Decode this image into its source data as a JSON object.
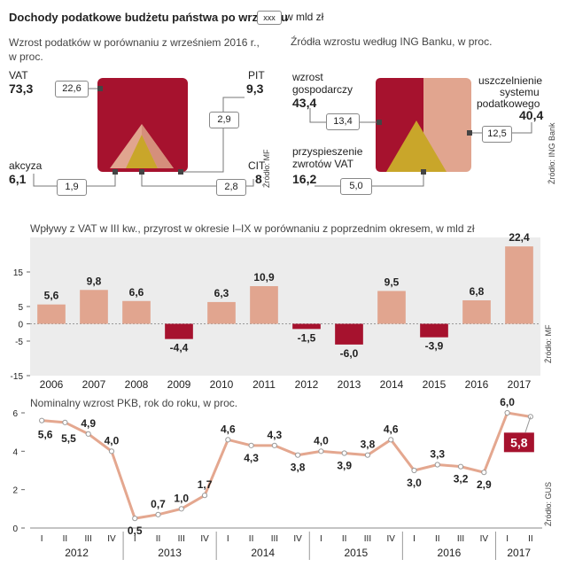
{
  "header": {
    "title": "Dochody podatkowe  budżetu państwa po wrześniu",
    "legend_box": "xxx",
    "legend_unit": "w mld zł"
  },
  "colors": {
    "dark_red": "#a6122e",
    "salmon": "#e1a58f",
    "olive": "#c9a62a",
    "band": "#ececec",
    "line": "#e4a78f"
  },
  "chart_data": [
    {
      "type": "pie",
      "title": "Wzrost podatków w porównaniu z wrześniem 2016 r., w proc.",
      "source": "Źródło: MF",
      "slices": [
        {
          "name": "VAT",
          "value": 73.3,
          "amount": "22,6"
        },
        {
          "name": "PIT",
          "value": 9.3,
          "amount": "2,9"
        },
        {
          "name": "CIT",
          "value": 8,
          "amount": "2,8"
        },
        {
          "name": "akcyza",
          "value": 6.1,
          "amount": "1,9"
        }
      ],
      "value_labels": [
        "73,3",
        "9,3",
        "8",
        "6,1"
      ]
    },
    {
      "type": "pie",
      "title": "Źródła wzrostu według ING Banku, w proc.",
      "source": "Źródło: ING Bank",
      "slices": [
        {
          "name": "wzrost gospodarczy",
          "value": 43.4,
          "amount": "13,4"
        },
        {
          "name": "uszczelnienie systemu podatkowego",
          "value": 40.4,
          "amount": "12,5"
        },
        {
          "name": "przyspieszenie zwrotów VAT",
          "value": 16.2,
          "amount": "5,0"
        }
      ],
      "label_lines": {
        "growth": [
          "wzrost",
          "gospodarczy"
        ],
        "tighten": [
          "uszczelnienie",
          "systemu",
          "podatkowego"
        ],
        "refund": [
          "przyspieszenie",
          "zwrotów VAT"
        ]
      },
      "value_labels": [
        "43,4",
        "40,4",
        "16,2"
      ]
    },
    {
      "type": "bar",
      "title": "Wpływy z VAT w III kw., przyrost w okresie I–IX w porównaniu z poprzednim okresem, w mld zł",
      "source": "Źródło: MF",
      "categories": [
        "2006",
        "2007",
        "2008",
        "2009",
        "2010",
        "2011",
        "2012",
        "2013",
        "2014",
        "2015",
        "2016",
        "2017"
      ],
      "values": [
        5.6,
        9.8,
        6.6,
        -4.4,
        6.3,
        10.9,
        -1.5,
        -6.0,
        9.5,
        -3.9,
        6.8,
        22.4
      ],
      "value_labels": [
        "5,6",
        "9,8",
        "6,6",
        "-4,4",
        "6,3",
        "10,9",
        "-1,5",
        "-6,0",
        "9,5",
        "-3,9",
        "6,8",
        "22,4"
      ],
      "ylim": [
        -15,
        25
      ],
      "yticks": [
        -15,
        -5,
        0,
        5,
        15
      ]
    },
    {
      "type": "line",
      "title": "Nominalny wzrost PKB, rok do roku, w proc.",
      "source": "Źródło: GUS",
      "x": [
        "I",
        "II",
        "III",
        "IV",
        "I",
        "II",
        "III",
        "IV",
        "I",
        "II",
        "III",
        "IV",
        "I",
        "II",
        "III",
        "IV",
        "I",
        "II",
        "III",
        "IV",
        "I",
        "II"
      ],
      "years": [
        {
          "label": "2012",
          "quarters": 4
        },
        {
          "label": "2013",
          "quarters": 4
        },
        {
          "label": "2014",
          "quarters": 4
        },
        {
          "label": "2015",
          "quarters": 4
        },
        {
          "label": "2016",
          "quarters": 4
        },
        {
          "label": "2017",
          "quarters": 2
        }
      ],
      "values": [
        5.6,
        5.5,
        4.9,
        4.0,
        0.5,
        0.7,
        1.0,
        1.7,
        4.6,
        4.3,
        4.3,
        3.8,
        4.0,
        3.9,
        3.8,
        4.6,
        3.0,
        3.3,
        3.2,
        2.9,
        6.0,
        5.8
      ],
      "value_labels": [
        "5,6",
        "5,5",
        "4,9",
        "4,0",
        "0,5",
        "0,7",
        "1,0",
        "1,7",
        "4,6",
        "4,3",
        "4,3",
        "3,8",
        "4,0",
        "3,9",
        "3,8",
        "4,6",
        "3,0",
        "3,3",
        "3,2",
        "2,9",
        "6,0",
        "5,8"
      ],
      "ylim": [
        0,
        6
      ],
      "yticks": [
        0,
        2,
        4,
        6
      ]
    }
  ]
}
